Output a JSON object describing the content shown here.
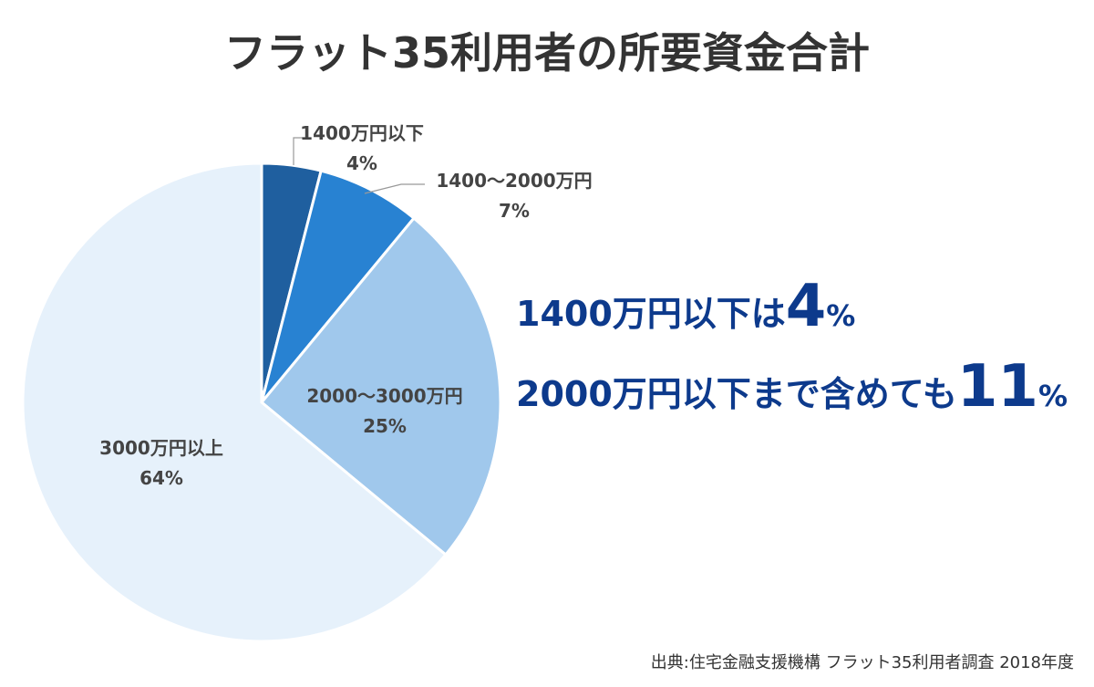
{
  "title": "フラット35利用者の所要資金合計",
  "callouts": {
    "line1": {
      "text": "1400万円以下は",
      "big": "4",
      "pct": "%"
    },
    "line2": {
      "text": "2000万円以下まで含めても",
      "big": "11",
      "pct": "%"
    }
  },
  "source": "出典:住宅金融支援機構 フラット35利用者調査 2018年度",
  "chart_data": {
    "type": "pie",
    "slices": [
      {
        "label": "1400万円以下",
        "value": 4,
        "pct_label": "4%",
        "color": "#1f5f9f"
      },
      {
        "label": "1400〜2000万円",
        "value": 7,
        "pct_label": "7%",
        "color": "#2882d2"
      },
      {
        "label": "2000〜3000万円",
        "value": 25,
        "pct_label": "25%",
        "color": "#a0c8ec"
      },
      {
        "label": "3000万円以上",
        "value": 64,
        "pct_label": "64%",
        "color": "#e6f1fb"
      }
    ],
    "label_color": "#444444"
  }
}
